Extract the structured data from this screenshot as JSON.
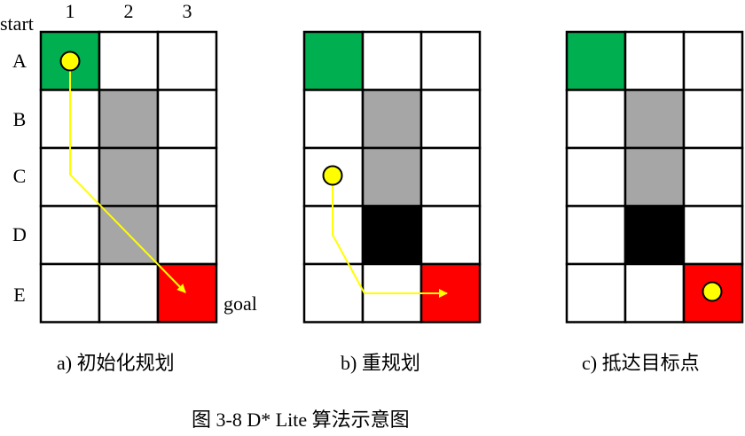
{
  "labels": {
    "start": "start",
    "goal": "goal",
    "columns": [
      "1",
      "2",
      "3"
    ],
    "rows": [
      "A",
      "B",
      "C",
      "D",
      "E"
    ]
  },
  "panels": [
    {
      "caption": "a) 初始化规划",
      "grid": [
        [
          "start",
          "free",
          "free"
        ],
        [
          "free",
          "obstacle",
          "free"
        ],
        [
          "free",
          "obstacle",
          "free"
        ],
        [
          "free",
          "obstacle",
          "free"
        ],
        [
          "free",
          "free",
          "goal"
        ]
      ],
      "robot": {
        "row": 0,
        "col": 0
      },
      "path": true
    },
    {
      "caption": "b) 重规划",
      "grid": [
        [
          "start",
          "free",
          "free"
        ],
        [
          "free",
          "obstacle",
          "free"
        ],
        [
          "free",
          "obstacle",
          "free"
        ],
        [
          "free",
          "new-obstacle",
          "free"
        ],
        [
          "free",
          "free",
          "goal"
        ]
      ],
      "robot": {
        "row": 2,
        "col": 0
      },
      "path": true
    },
    {
      "caption": "c) 抵达目标点",
      "grid": [
        [
          "start",
          "free",
          "free"
        ],
        [
          "free",
          "obstacle",
          "free"
        ],
        [
          "free",
          "obstacle",
          "free"
        ],
        [
          "free",
          "new-obstacle",
          "free"
        ],
        [
          "free",
          "free",
          "goal"
        ]
      ],
      "robot": {
        "row": 4,
        "col": 2
      },
      "path": false
    }
  ],
  "colors": {
    "start": "#00b050",
    "goal": "#ff0000",
    "obstacle": "#a6a6a6",
    "new-obstacle": "#000000",
    "free": "#ffffff",
    "robot": "#ffff00",
    "path": "#ffff00"
  },
  "figure_title": "图 3-8 D* Lite 算法示意图"
}
